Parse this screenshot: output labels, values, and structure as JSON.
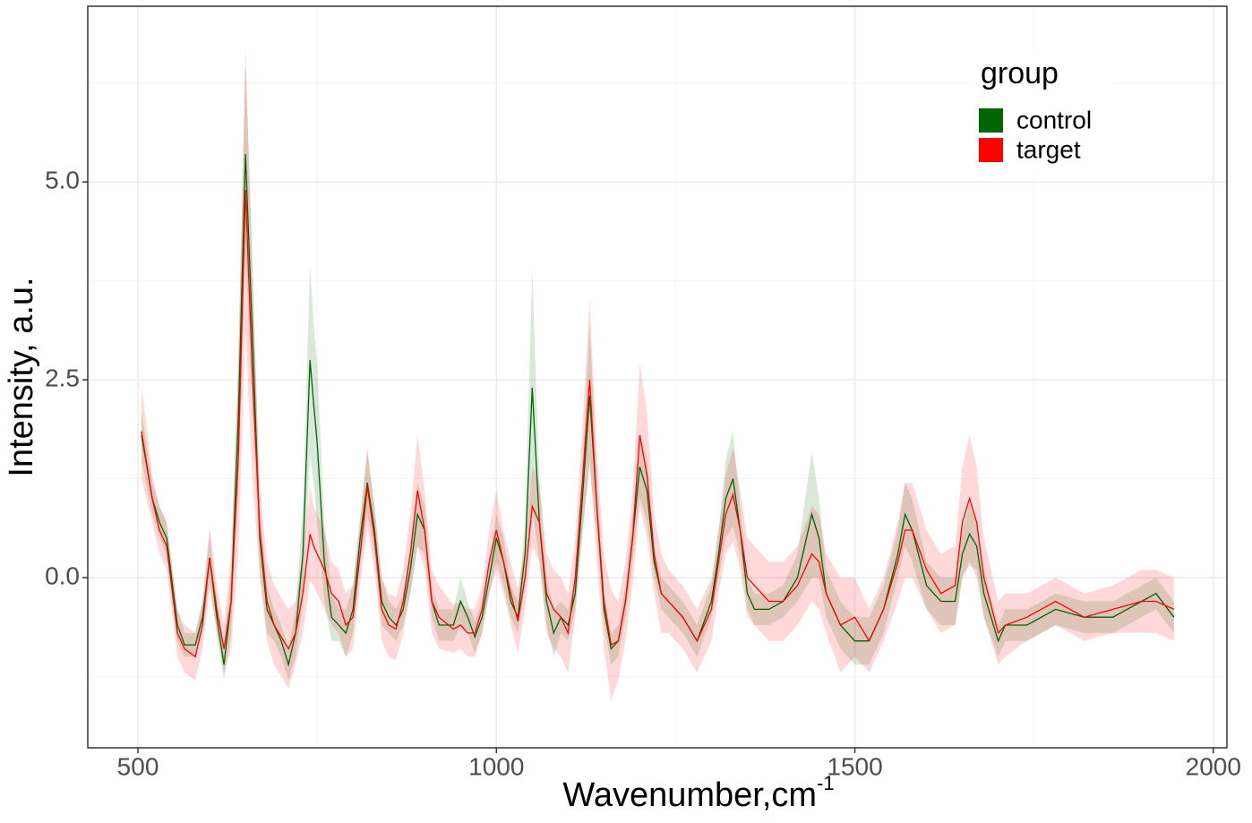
{
  "chart_data": {
    "type": "line",
    "x_label": "Wavenumber,cm",
    "x_label_superscript": "-1",
    "y_label": "Intensity, a.u.",
    "legend_title": "group",
    "legend_position": "top-right",
    "xlim": [
      430,
      2019
    ],
    "ylim": [
      -2.15,
      7.22
    ],
    "xticks": [
      500,
      1000,
      1500,
      2000
    ],
    "yticks": [
      {
        "value": 0,
        "label": "0.0"
      },
      2.5,
      {
        "value": 5,
        "label": "5.0"
      }
    ],
    "x_minor_grid": [
      750,
      1250,
      1750
    ],
    "y_minor_grid": [
      -1.25,
      1.25,
      3.75,
      6.25
    ],
    "grid": true,
    "x": [
      505,
      520,
      530,
      540,
      555,
      565,
      580,
      590,
      600,
      610,
      620,
      630,
      640,
      650,
      660,
      670,
      680,
      690,
      700,
      710,
      720,
      730,
      740,
      745,
      750,
      760,
      770,
      780,
      790,
      800,
      810,
      820,
      830,
      840,
      850,
      860,
      870,
      880,
      890,
      900,
      910,
      920,
      940,
      950,
      960,
      970,
      980,
      990,
      1000,
      1010,
      1020,
      1030,
      1040,
      1050,
      1060,
      1070,
      1080,
      1090,
      1100,
      1110,
      1120,
      1130,
      1140,
      1150,
      1160,
      1170,
      1180,
      1190,
      1200,
      1210,
      1220,
      1230,
      1240,
      1260,
      1280,
      1300,
      1310,
      1320,
      1330,
      1340,
      1350,
      1360,
      1380,
      1400,
      1420,
      1440,
      1450,
      1460,
      1480,
      1500,
      1520,
      1540,
      1560,
      1570,
      1580,
      1600,
      1620,
      1640,
      1650,
      1660,
      1670,
      1680,
      1700,
      1710,
      1740,
      1780,
      1820,
      1860,
      1900,
      1920,
      1945
    ],
    "series": [
      {
        "name": "control",
        "color": "#006400",
        "values": [
          1.8,
          1.0,
          0.7,
          0.5,
          -0.6,
          -0.85,
          -0.85,
          -0.5,
          0.25,
          -0.5,
          -1.1,
          -0.3,
          2.0,
          5.35,
          3.0,
          0.5,
          -0.4,
          -0.6,
          -0.8,
          -1.1,
          -0.7,
          0.3,
          2.75,
          2.2,
          1.7,
          0.2,
          -0.5,
          -0.6,
          -0.7,
          -0.4,
          0.5,
          1.2,
          0.6,
          -0.3,
          -0.5,
          -0.6,
          -0.4,
          0.1,
          0.8,
          0.6,
          -0.3,
          -0.6,
          -0.6,
          -0.3,
          -0.5,
          -0.75,
          -0.5,
          0.0,
          0.5,
          0.2,
          -0.3,
          -0.5,
          0.3,
          2.4,
          0.7,
          -0.3,
          -0.7,
          -0.5,
          -0.6,
          -0.2,
          1.0,
          2.3,
          0.9,
          -0.4,
          -0.9,
          -0.8,
          -0.3,
          0.5,
          1.4,
          1.1,
          0.2,
          -0.2,
          -0.3,
          -0.5,
          -0.8,
          -0.3,
          0.3,
          1.0,
          1.25,
          0.6,
          -0.2,
          -0.4,
          -0.4,
          -0.3,
          0.0,
          0.8,
          0.5,
          -0.2,
          -0.6,
          -0.8,
          -0.8,
          -0.4,
          0.3,
          0.8,
          0.6,
          -0.1,
          -0.3,
          -0.3,
          0.3,
          0.55,
          0.4,
          -0.2,
          -0.8,
          -0.6,
          -0.6,
          -0.4,
          -0.5,
          -0.5,
          -0.3,
          -0.2,
          -0.5
        ],
        "sd": [
          0.3,
          0.2,
          0.2,
          0.2,
          0.2,
          0.15,
          0.15,
          0.2,
          0.3,
          0.2,
          0.2,
          0.4,
          0.8,
          1.2,
          0.9,
          0.4,
          0.3,
          0.2,
          0.2,
          0.2,
          0.3,
          0.6,
          1.2,
          1.0,
          1.0,
          0.5,
          0.3,
          0.2,
          0.3,
          0.3,
          0.3,
          0.4,
          0.3,
          0.3,
          0.2,
          0.2,
          0.2,
          0.3,
          0.4,
          0.3,
          0.2,
          0.2,
          0.2,
          0.3,
          0.2,
          0.2,
          0.2,
          0.2,
          0.3,
          0.3,
          0.2,
          0.2,
          0.4,
          1.5,
          0.5,
          0.3,
          0.3,
          0.2,
          0.2,
          0.2,
          0.4,
          0.9,
          0.4,
          0.2,
          0.2,
          0.2,
          0.2,
          0.3,
          0.4,
          0.4,
          0.2,
          0.2,
          0.2,
          0.2,
          0.2,
          0.2,
          0.3,
          0.5,
          0.6,
          0.3,
          0.2,
          0.2,
          0.2,
          0.2,
          0.3,
          0.8,
          0.5,
          0.3,
          0.3,
          0.3,
          0.3,
          0.3,
          0.3,
          0.4,
          0.4,
          0.3,
          0.3,
          0.3,
          0.3,
          0.4,
          0.3,
          0.3,
          0.2,
          0.2,
          0.2,
          0.2,
          0.2,
          0.2,
          0.2,
          0.2,
          0.2
        ]
      },
      {
        "name": "target",
        "color": "#ff0000",
        "values": [
          1.85,
          1.0,
          0.6,
          0.4,
          -0.7,
          -0.9,
          -1.0,
          -0.6,
          0.25,
          -0.4,
          -0.9,
          -0.3,
          1.5,
          4.9,
          2.5,
          0.6,
          -0.3,
          -0.6,
          -0.75,
          -0.9,
          -0.7,
          -0.2,
          0.55,
          0.4,
          0.3,
          0.1,
          -0.2,
          -0.3,
          -0.6,
          -0.5,
          0.3,
          1.15,
          0.5,
          -0.4,
          -0.6,
          -0.65,
          -0.3,
          0.3,
          1.1,
          0.6,
          -0.3,
          -0.5,
          -0.65,
          -0.6,
          -0.7,
          -0.7,
          -0.4,
          0.2,
          0.6,
          0.2,
          -0.2,
          -0.55,
          0.0,
          0.9,
          0.7,
          -0.2,
          -0.4,
          -0.5,
          -0.7,
          0.0,
          1.2,
          2.5,
          0.9,
          -0.3,
          -0.85,
          -0.8,
          -0.3,
          0.5,
          1.8,
          1.3,
          0.3,
          -0.2,
          -0.3,
          -0.5,
          -0.8,
          -0.4,
          0.2,
          0.8,
          1.05,
          0.6,
          0.0,
          -0.1,
          -0.3,
          -0.3,
          -0.1,
          0.3,
          0.2,
          -0.2,
          -0.6,
          -0.5,
          -0.8,
          -0.4,
          0.2,
          0.6,
          0.6,
          0.1,
          -0.2,
          -0.1,
          0.7,
          1.0,
          0.7,
          0.0,
          -0.7,
          -0.6,
          -0.5,
          -0.3,
          -0.5,
          -0.4,
          -0.3,
          -0.3,
          -0.4
        ],
        "sd": [
          0.6,
          0.3,
          0.3,
          0.3,
          0.3,
          0.3,
          0.3,
          0.3,
          0.4,
          0.3,
          0.3,
          0.6,
          1.2,
          1.8,
          1.3,
          0.6,
          0.5,
          0.5,
          0.5,
          0.5,
          0.4,
          0.5,
          0.6,
          0.5,
          0.5,
          0.5,
          0.4,
          0.4,
          0.4,
          0.4,
          0.4,
          0.5,
          0.4,
          0.4,
          0.4,
          0.4,
          0.4,
          0.5,
          0.7,
          0.5,
          0.4,
          0.4,
          0.3,
          0.3,
          0.3,
          0.3,
          0.3,
          0.4,
          0.5,
          0.4,
          0.4,
          0.4,
          0.4,
          0.5,
          0.5,
          0.5,
          0.5,
          0.5,
          0.5,
          0.5,
          0.7,
          1.0,
          0.7,
          0.6,
          0.7,
          0.5,
          0.5,
          0.6,
          0.9,
          0.8,
          0.5,
          0.5,
          0.4,
          0.4,
          0.4,
          0.4,
          0.4,
          0.5,
          0.6,
          0.5,
          0.5,
          0.5,
          0.5,
          0.5,
          0.5,
          0.6,
          0.6,
          0.5,
          0.6,
          0.5,
          0.4,
          0.4,
          0.5,
          0.6,
          0.6,
          0.5,
          0.5,
          0.5,
          0.7,
          0.8,
          0.7,
          0.5,
          0.4,
          0.4,
          0.3,
          0.3,
          0.3,
          0.3,
          0.4,
          0.4,
          0.4
        ]
      }
    ]
  }
}
